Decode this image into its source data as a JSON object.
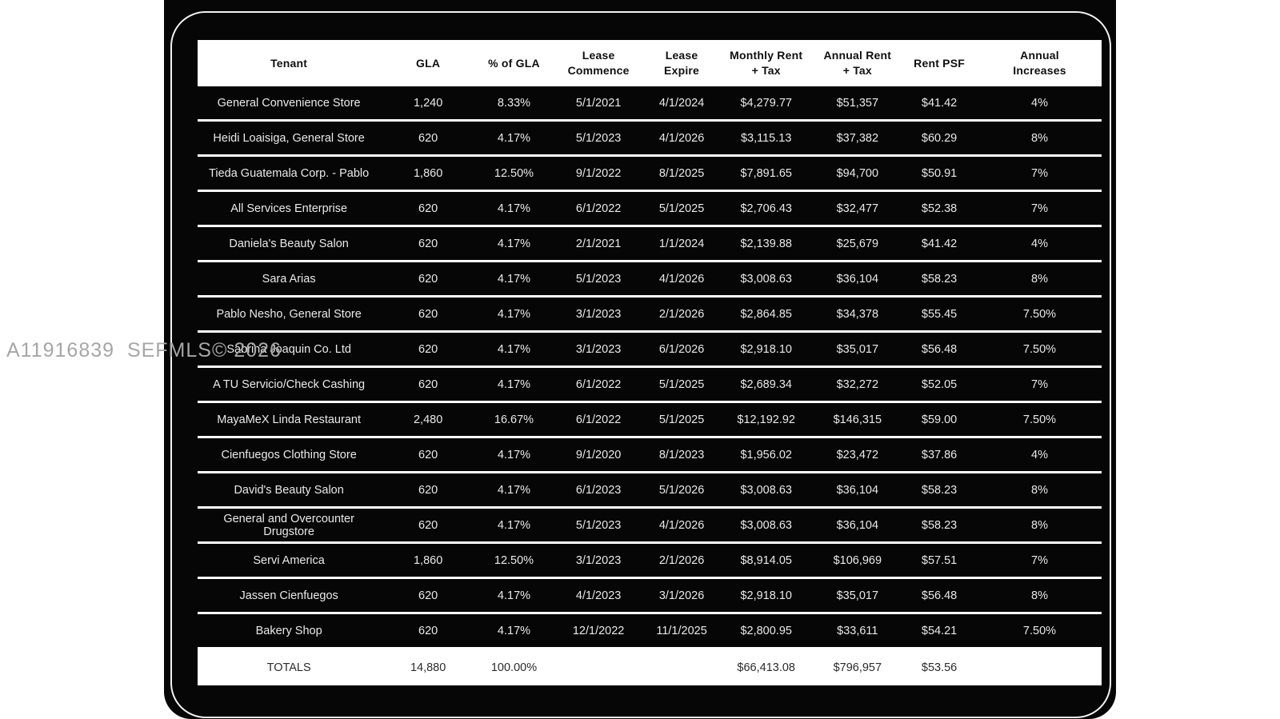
{
  "watermark": "A11916839  SEFMLS© 2026",
  "colors": {
    "page_background": "#ffffff",
    "panel_background": "#060606",
    "separator_line": "#ffffff",
    "header_background": "#ffffff",
    "header_text": "#101010",
    "row_text": "#e9e9e9",
    "totals_text": "#2b2b2b",
    "watermark_text": "#a6a6a6"
  },
  "table": {
    "columns": [
      {
        "key": "tenant",
        "label": "Tenant"
      },
      {
        "key": "gla",
        "label": "GLA"
      },
      {
        "key": "pct_gla",
        "label": "% of GLA"
      },
      {
        "key": "lease_commence",
        "label": "Lease\nCommence"
      },
      {
        "key": "lease_expire",
        "label": "Lease\nExpire"
      },
      {
        "key": "monthly_rent",
        "label": "Monthly Rent\n+ Tax"
      },
      {
        "key": "annual_rent",
        "label": "Annual Rent\n+ Tax"
      },
      {
        "key": "rent_psf",
        "label": "Rent PSF"
      },
      {
        "key": "annual_increases",
        "label": "Annual\nIncreases"
      }
    ],
    "rows": [
      {
        "tenant": "General Convenience Store",
        "gla": "1,240",
        "pct_gla": "8.33%",
        "lease_commence": "5/1/2021",
        "lease_expire": "4/1/2024",
        "monthly_rent": "$4,279.77",
        "annual_rent": "$51,357",
        "rent_psf": "$41.42",
        "annual_increases": "4%"
      },
      {
        "tenant": "Heidi Loaisiga, General Store",
        "gla": "620",
        "pct_gla": "4.17%",
        "lease_commence": "5/1/2023",
        "lease_expire": "4/1/2026",
        "monthly_rent": "$3,115.13",
        "annual_rent": "$37,382",
        "rent_psf": "$60.29",
        "annual_increases": "8%"
      },
      {
        "tenant": "Tieda Guatemala Corp. - Pablo",
        "gla": "1,860",
        "pct_gla": "12.50%",
        "lease_commence": "9/1/2022",
        "lease_expire": "8/1/2025",
        "monthly_rent": "$7,891.65",
        "annual_rent": "$94,700",
        "rent_psf": "$50.91",
        "annual_increases": "7%"
      },
      {
        "tenant": "All Services Enterprise",
        "gla": "620",
        "pct_gla": "4.17%",
        "lease_commence": "6/1/2022",
        "lease_expire": "5/1/2025",
        "monthly_rent": "$2,706.43",
        "annual_rent": "$32,477",
        "rent_psf": "$52.38",
        "annual_increases": "7%"
      },
      {
        "tenant": "Daniela's Beauty Salon",
        "gla": "620",
        "pct_gla": "4.17%",
        "lease_commence": "2/1/2021",
        "lease_expire": "1/1/2024",
        "monthly_rent": "$2,139.88",
        "annual_rent": "$25,679",
        "rent_psf": "$41.42",
        "annual_increases": "4%"
      },
      {
        "tenant": "Sara Arias",
        "gla": "620",
        "pct_gla": "4.17%",
        "lease_commence": "5/1/2023",
        "lease_expire": "4/1/2026",
        "monthly_rent": "$3,008.63",
        "annual_rent": "$36,104",
        "rent_psf": "$58.23",
        "annual_increases": "8%"
      },
      {
        "tenant": "Pablo Nesho, General Store",
        "gla": "620",
        "pct_gla": "4.17%",
        "lease_commence": "3/1/2023",
        "lease_expire": "2/1/2026",
        "monthly_rent": "$2,864.85",
        "annual_rent": "$34,378",
        "rent_psf": "$55.45",
        "annual_increases": "7.50%"
      },
      {
        "tenant": "Sabrina Joaquin Co. Ltd",
        "gla": "620",
        "pct_gla": "4.17%",
        "lease_commence": "3/1/2023",
        "lease_expire": "6/1/2026",
        "monthly_rent": "$2,918.10",
        "annual_rent": "$35,017",
        "rent_psf": "$56.48",
        "annual_increases": "7.50%"
      },
      {
        "tenant": "A TU Servicio/Check Cashing",
        "gla": "620",
        "pct_gla": "4.17%",
        "lease_commence": "6/1/2022",
        "lease_expire": "5/1/2025",
        "monthly_rent": "$2,689.34",
        "annual_rent": "$32,272",
        "rent_psf": "$52.05",
        "annual_increases": "7%"
      },
      {
        "tenant": "MayaMeX Linda Restaurant",
        "gla": "2,480",
        "pct_gla": "16.67%",
        "lease_commence": "6/1/2022",
        "lease_expire": "5/1/2025",
        "monthly_rent": "$12,192.92",
        "annual_rent": "$146,315",
        "rent_psf": "$59.00",
        "annual_increases": "7.50%"
      },
      {
        "tenant": "Cienfuegos Clothing Store",
        "gla": "620",
        "pct_gla": "4.17%",
        "lease_commence": "9/1/2020",
        "lease_expire": "8/1/2023",
        "monthly_rent": "$1,956.02",
        "annual_rent": "$23,472",
        "rent_psf": "$37.86",
        "annual_increases": "4%"
      },
      {
        "tenant": "David's Beauty Salon",
        "gla": "620",
        "pct_gla": "4.17%",
        "lease_commence": "6/1/2023",
        "lease_expire": "5/1/2026",
        "monthly_rent": "$3,008.63",
        "annual_rent": "$36,104",
        "rent_psf": "$58.23",
        "annual_increases": "8%"
      },
      {
        "tenant": "General and Overcounter Drugstore",
        "gla": "620",
        "pct_gla": "4.17%",
        "lease_commence": "5/1/2023",
        "lease_expire": "4/1/2026",
        "monthly_rent": "$3,008.63",
        "annual_rent": "$36,104",
        "rent_psf": "$58.23",
        "annual_increases": "8%"
      },
      {
        "tenant": "Servi America",
        "gla": "1,860",
        "pct_gla": "12.50%",
        "lease_commence": "3/1/2023",
        "lease_expire": "2/1/2026",
        "monthly_rent": "$8,914.05",
        "annual_rent": "$106,969",
        "rent_psf": "$57.51",
        "annual_increases": "7%"
      },
      {
        "tenant": "Jassen Cienfuegos",
        "gla": "620",
        "pct_gla": "4.17%",
        "lease_commence": "4/1/2023",
        "lease_expire": "3/1/2026",
        "monthly_rent": "$2,918.10",
        "annual_rent": "$35,017",
        "rent_psf": "$56.48",
        "annual_increases": "8%"
      },
      {
        "tenant": "Bakery Shop",
        "gla": "620",
        "pct_gla": "4.17%",
        "lease_commence": "12/1/2022",
        "lease_expire": "11/1/2025",
        "monthly_rent": "$2,800.95",
        "annual_rent": "$33,611",
        "rent_psf": "$54.21",
        "annual_increases": "7.50%"
      }
    ],
    "totals": {
      "tenant": "TOTALS",
      "gla": "14,880",
      "pct_gla": "100.00%",
      "lease_commence": "",
      "lease_expire": "",
      "monthly_rent": "$66,413.08",
      "annual_rent": "$796,957",
      "rent_psf": "$53.56",
      "annual_increases": ""
    }
  }
}
